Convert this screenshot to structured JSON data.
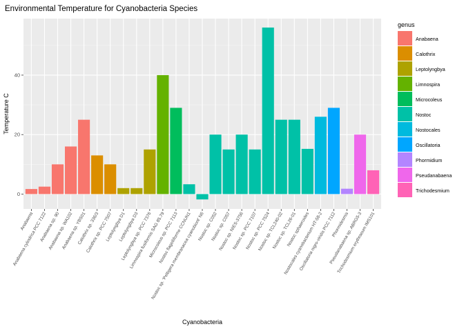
{
  "chart_data": {
    "type": "bar",
    "title": "Environmental Temperature for Cyanobacteria Species",
    "xlabel": "Cyanobacteria",
    "ylabel": "Temperature C",
    "ylim": [
      -5,
      59
    ],
    "yticks": [
      0,
      20,
      40
    ],
    "grid": true,
    "legend_title": "genus",
    "legend_position": "right",
    "legend": [
      {
        "name": "Anabaena",
        "color": "#F8766D"
      },
      {
        "name": "Calothrix",
        "color": "#DB8E00"
      },
      {
        "name": "Leptolyngbya",
        "color": "#AEA200"
      },
      {
        "name": "Limnospira",
        "color": "#64B200"
      },
      {
        "name": "Microcoleus",
        "color": "#00BD5C"
      },
      {
        "name": "Nostoc",
        "color": "#00C1A7"
      },
      {
        "name": "Nostocales",
        "color": "#00BADE"
      },
      {
        "name": "Oscillatoria",
        "color": "#00A6FF"
      },
      {
        "name": "Phormidium",
        "color": "#B385FF"
      },
      {
        "name": "Pseudanabaena",
        "color": "#EF67EB"
      },
      {
        "name": "Trichodesmium",
        "color": "#FF63B6"
      }
    ],
    "bars": [
      {
        "label": "Anabaena",
        "value": 1.7,
        "genus": "Anabaena"
      },
      {
        "label": "Anabaena cylindrica PCC 7122",
        "value": 2.5,
        "genus": "Anabaena"
      },
      {
        "label": "Anabaena sp. 90",
        "value": 10,
        "genus": "Anabaena"
      },
      {
        "label": "Anabaena sp. WA102",
        "value": 16,
        "genus": "Anabaena"
      },
      {
        "label": "Anabaena sp. YBS01",
        "value": 25,
        "genus": "Anabaena"
      },
      {
        "label": "Calothrix sp. 336/3",
        "value": 13,
        "genus": "Calothrix"
      },
      {
        "label": "Calothrix sp. PCC 7507",
        "value": 10,
        "genus": "Calothrix"
      },
      {
        "label": "Leptolyngbya D1",
        "value": 2,
        "genus": "Leptolyngbya"
      },
      {
        "label": "Leptolyngbya D3",
        "value": 2,
        "genus": "Leptolyngbya"
      },
      {
        "label": "Leptolyngbya sp. PCC 7376",
        "value": 15,
        "genus": "Leptolyngbya"
      },
      {
        "label": "Limnospira fusiformis SAG 85.79",
        "value": 40,
        "genus": "Limnospira"
      },
      {
        "label": "Microcoleus sp. PCC 7113",
        "value": 29,
        "genus": "Microcoleus"
      },
      {
        "label": "Nostoc flagelliforme CCNUN1",
        "value": 3.3,
        "genus": "Nostoc"
      },
      {
        "label": "Nostoc sp. 'Peltigera membranacea cyanobiont' N6",
        "value": -1.8,
        "genus": "Nostoc"
      },
      {
        "label": "Nostoc sp. C052",
        "value": 20,
        "genus": "Nostoc"
      },
      {
        "label": "Nostoc sp. C057",
        "value": 15,
        "genus": "Nostoc"
      },
      {
        "label": "Nostoc sp. NIES-3756",
        "value": 20,
        "genus": "Nostoc"
      },
      {
        "label": "Nostoc sp. PCC 7107",
        "value": 15,
        "genus": "Nostoc"
      },
      {
        "label": "Nostoc sp. PCC 7524",
        "value": 56,
        "genus": "Nostoc"
      },
      {
        "label": "Nostoc sp. TCL240-02",
        "value": 25,
        "genus": "Nostoc"
      },
      {
        "label": "Nostoc sp. TCL26-01",
        "value": 25,
        "genus": "Nostoc"
      },
      {
        "label": "Nostoc sphaeroides",
        "value": 15.2,
        "genus": "Nostoc"
      },
      {
        "label": "Nostocales cyanobacterium HT-58-2",
        "value": 26,
        "genus": "Nostocales"
      },
      {
        "label": "Oscillatoria nigro-viridis PCC 7112",
        "value": 29,
        "genus": "Oscillatoria"
      },
      {
        "label": "Phormidesmis",
        "value": 1.8,
        "genus": "Phormidium"
      },
      {
        "label": "Pseudanabaena sp. ABRG5-3",
        "value": 20,
        "genus": "Pseudanabaena"
      },
      {
        "label": "Trichodesmium erythraeum IMS101",
        "value": 8,
        "genus": "Trichodesmium"
      }
    ]
  }
}
